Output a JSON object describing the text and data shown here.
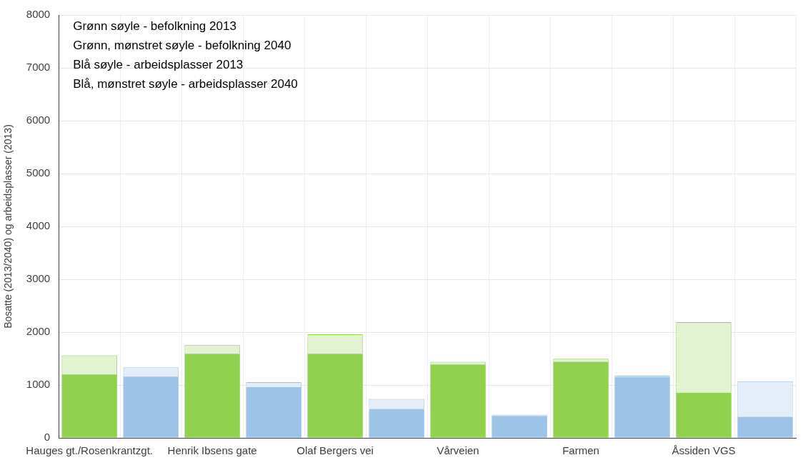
{
  "chart_data": {
    "type": "bar",
    "stacked": true,
    "ylabel": "Bosatte (2013/2040) og arbeidsplasser (2013)",
    "annotations": [
      "Grønn søyle - befolkning 2013",
      "Grønn, mønstret søyle - befolkning 2040",
      "Blå søyle - arbeidsplasser 2013",
      "Blå, mønstret søyle - arbeidsplasser 2040"
    ],
    "categories": [
      "Hauges gt./Rosenkrantzgt.",
      null,
      "Henrik Ibsens gate",
      null,
      "Olaf Bergers vei",
      null,
      "Vårveien",
      null,
      "Farmen",
      null,
      "Åssiden VGS",
      null
    ],
    "series": [
      {
        "color": "#92d050",
        "values": [
          1200,
          null,
          1590,
          null,
          1590,
          null,
          1390,
          null,
          1440,
          null,
          855,
          null
        ]
      },
      {
        "color": "#e2f3d2",
        "values": [
          360,
          null,
          170,
          null,
          370,
          null,
          50,
          null,
          55,
          null,
          1335,
          null
        ]
      },
      {
        "color": "#9dc3e6",
        "values": [
          null,
          1160,
          null,
          960,
          null,
          547,
          null,
          414,
          null,
          1150,
          null,
          400
        ]
      },
      {
        "color": "#e3eef9",
        "values": [
          null,
          175,
          null,
          95,
          null,
          190,
          null,
          25,
          null,
          25,
          null,
          670
        ]
      }
    ],
    "ylim": [
      0,
      8000
    ],
    "yticks": [
      0,
      1000,
      2000,
      3000,
      4000,
      5000,
      6000,
      7000,
      8000
    ],
    "grid": true,
    "legend": false
  }
}
